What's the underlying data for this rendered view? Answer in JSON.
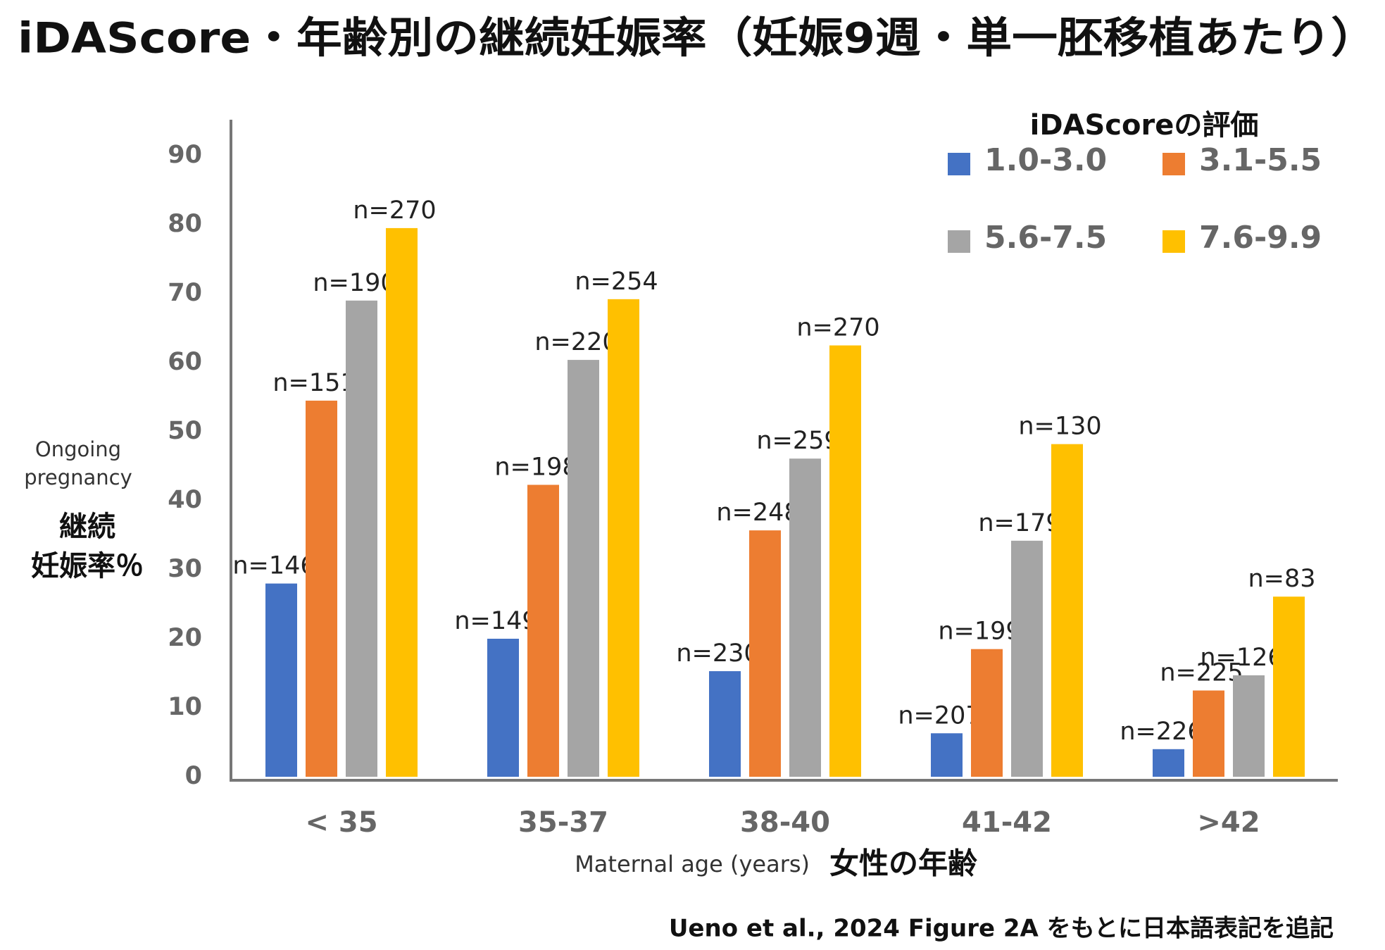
{
  "chart_data": {
    "type": "bar",
    "title": "iDAScore・年齢別の継続妊娠率（妊娠9週・単一胚移植あたり）",
    "legend_title": "iDAScoreの評価",
    "y_label": [
      "Ongoing",
      "pregnancy"
    ],
    "y_label_ja": [
      "継続",
      "妊娠率％"
    ],
    "x_label": "Maternal age (years)",
    "x_label_ja": "女性の年齢",
    "source": "Ueno et al., 2024 Figure 2A をもとに日本語表記を追記",
    "categories": [
      "< 35",
      "35-37",
      "38-40",
      "41-42",
      ">42"
    ],
    "series": [
      {
        "name": "1.0-3.0",
        "color": "#4472c4",
        "values": [
          28,
          20,
          15.3,
          6.3,
          4
        ],
        "labels": [
          "n=146",
          "n=149",
          "n=230",
          "n=207",
          "n=226"
        ]
      },
      {
        "name": "3.1-5.5",
        "color": "#ed7d31",
        "values": [
          54.5,
          42.3,
          35.7,
          18.5,
          12.5
        ],
        "labels": [
          "n=151",
          "n=198",
          "n=248",
          "n=199",
          "n=225"
        ]
      },
      {
        "name": "5.6-7.5",
        "color": "#a5a5a5",
        "values": [
          69,
          60.4,
          46.1,
          34.2,
          14.7
        ],
        "labels": [
          "n=190",
          "n=220",
          "n=259",
          "n=179",
          "n=126"
        ]
      },
      {
        "name": "7.6-9.9",
        "color": "#ffc000",
        "values": [
          79.5,
          69.2,
          62.5,
          48.2,
          26.1
        ],
        "labels": [
          "n=270",
          "n=254",
          "n=270",
          "n=130",
          "n=83"
        ]
      }
    ],
    "ylim": [
      0,
      90
    ],
    "yticks": [
      0,
      10,
      20,
      30,
      40,
      50,
      60,
      70,
      80,
      90
    ],
    "grid": false
  }
}
